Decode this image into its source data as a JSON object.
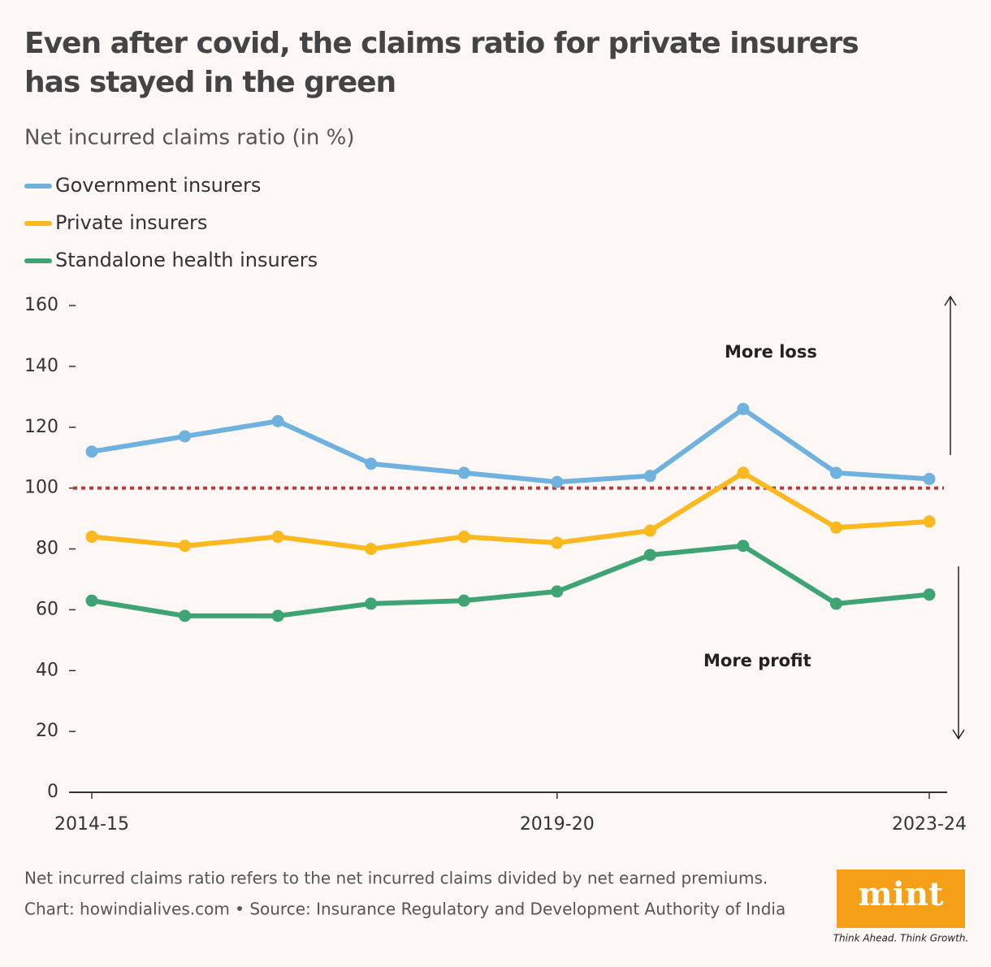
{
  "chart_data": {
    "type": "line",
    "title": "Even after covid, the claims ratio for private insurers has stayed in the green",
    "subtitle": "Net incurred claims ratio (in %)",
    "categories": [
      "2014-15",
      null,
      null,
      null,
      null,
      "2019-20",
      null,
      null,
      null,
      "2023-24"
    ],
    "series": [
      {
        "name": "Government insurers",
        "color": "#6fb2e0",
        "values": [
          112,
          117,
          122,
          108,
          105,
          102,
          104,
          126,
          105,
          103
        ]
      },
      {
        "name": "Private insurers",
        "color": "#fbb81f",
        "values": [
          84,
          81,
          84,
          80,
          84,
          82,
          86,
          105,
          87,
          89
        ]
      },
      {
        "name": "Standalone health insurers",
        "color": "#3fa474",
        "values": [
          63,
          58,
          58,
          62,
          63,
          66,
          78,
          81,
          62,
          65
        ]
      }
    ],
    "ylim": [
      0,
      160
    ],
    "yticks": [
      0,
      20,
      40,
      60,
      80,
      100,
      120,
      140,
      160
    ],
    "reference_line": {
      "value": 100,
      "color": "#b83a3a"
    },
    "annotations": [
      "More loss",
      "More profit"
    ],
    "note": "Net incurred claims ratio refers to the net incurred claims divided by net earned premiums.",
    "source": "Chart: howindialives.com • Source: Insurance Regulatory and Development Authority of India",
    "logo": {
      "name": "mint",
      "tagline": "Think Ahead. Think Growth."
    }
  }
}
